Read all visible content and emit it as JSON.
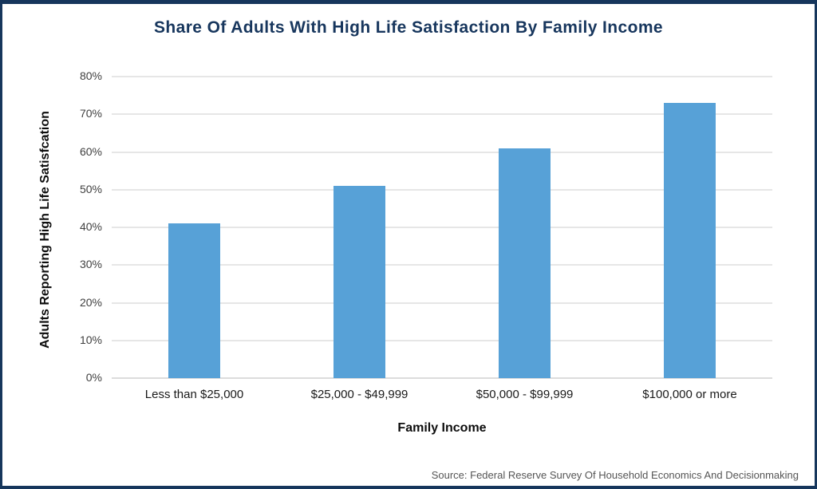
{
  "frame": {
    "border_color": "#16365C",
    "background": "#FFFFFF"
  },
  "chart_data": {
    "type": "bar",
    "title": "Share Of Adults With High Life Satisfaction By Family Income",
    "categories": [
      "Less than $25,000",
      "$25,000 - $49,999",
      "$50,000 - $99,999",
      "$100,000 or more"
    ],
    "values": [
      41,
      51,
      61,
      73
    ],
    "value_unit": "%",
    "xlabel": "Family Income",
    "ylabel": "Adults Reporting High Life Satisfcation",
    "ylim": [
      0,
      80
    ],
    "y_tick_labels": [
      "0%",
      "10%",
      "20%",
      "30%",
      "40%",
      "50%",
      "60%",
      "70%",
      "80%"
    ],
    "grid": "horizontal",
    "legend": "none",
    "bar_color": "#57A1D7",
    "grid_color": "#E6E6E6",
    "baseline_color": "#DCDCDC",
    "title_color": "#17365D",
    "tick_text_color": "#3F3F3F"
  },
  "source": {
    "text": "Source: Federal Reserve Survey Of Household Economics And Decisionmaking"
  }
}
